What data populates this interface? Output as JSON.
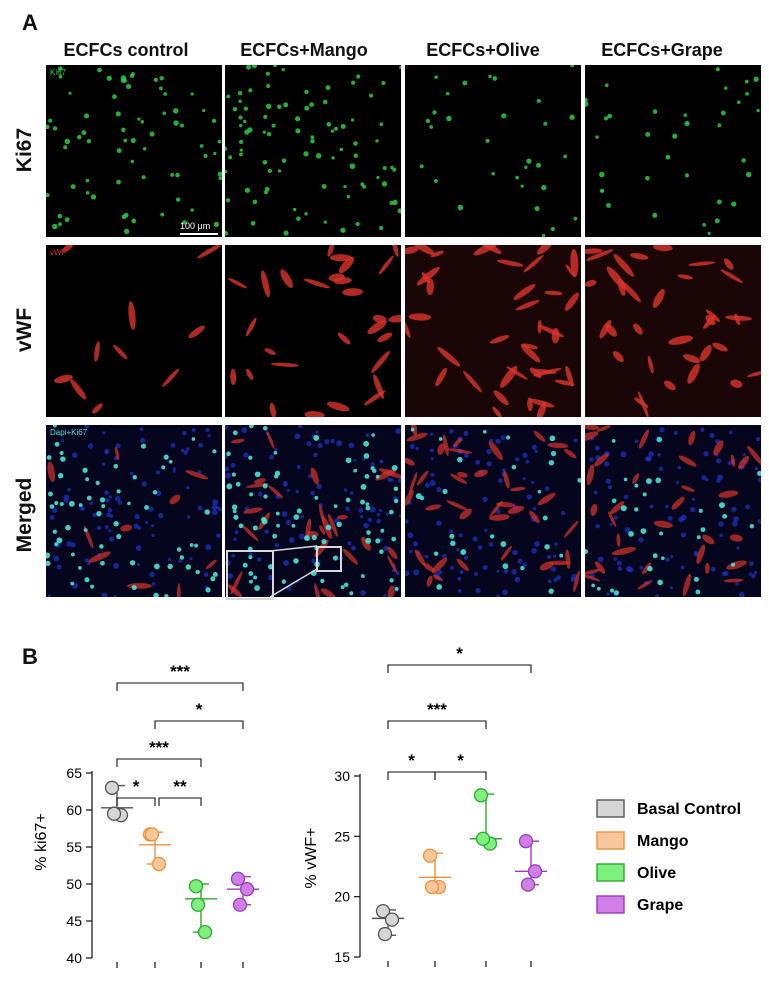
{
  "panel_a": {
    "letter": "A",
    "columns": [
      "ECFCs control",
      "ECFCs+Mango",
      "ECFCs+Olive",
      "ECFCs+Grape"
    ],
    "rows": [
      "Ki67",
      "vWF",
      "Merged"
    ],
    "channel_tags": {
      "ki67": "Ki67",
      "vwf": "vWF",
      "merged": "Dapi+Ki67"
    },
    "scale_bar": "100 μm",
    "colors": {
      "ki67": "#2ecc40",
      "vwf": "#d9342b",
      "dapi": "#1f35c8",
      "merge_nuclei": "#48e3d0"
    }
  },
  "panel_b": {
    "letter": "B"
  },
  "legend": {
    "items": [
      {
        "label": "Basal Control",
        "fill": "#d6d6d6",
        "edge": "#555555"
      },
      {
        "label": "Mango",
        "fill": "#f6c79b",
        "edge": "#f0913c"
      },
      {
        "label": "Olive",
        "fill": "#7ef07e",
        "edge": "#2fa82f"
      },
      {
        "label": "Grape",
        "fill": "#cf7fe6",
        "edge": "#9b3cbf"
      }
    ]
  },
  "chart_data": [
    {
      "type": "scatter",
      "ylabel": "% ki67+",
      "ylim": [
        40,
        65
      ],
      "yticks": [
        40,
        45,
        50,
        55,
        60,
        65
      ],
      "categories": [
        "Basal Control",
        "Mango",
        "Olive",
        "Grape"
      ],
      "series": [
        {
          "name": "Basal Control",
          "values": [
            63.0,
            59.3,
            59.5
          ],
          "center": 60.3,
          "range": [
            59.0,
            63.3
          ]
        },
        {
          "name": "Mango",
          "values": [
            56.7,
            52.7,
            56.7
          ],
          "center": 55.3,
          "range": [
            52.7,
            57.0
          ]
        },
        {
          "name": "Olive",
          "values": [
            49.7,
            43.5,
            47.2
          ],
          "center": 48.0,
          "range": [
            43.5,
            50.0
          ]
        },
        {
          "name": "Grape",
          "values": [
            50.7,
            49.3,
            47.2
          ],
          "center": 49.3,
          "range": [
            47.2,
            51.0
          ]
        }
      ],
      "significance": [
        {
          "from": 0,
          "to": 3,
          "label": "***"
        },
        {
          "from": 1,
          "to": 3,
          "label": "*"
        },
        {
          "from": 0,
          "to": 2,
          "label": "***"
        },
        {
          "from": 0,
          "to": 1,
          "label": "*"
        },
        {
          "from": 1,
          "to": 2,
          "label": "**"
        }
      ]
    },
    {
      "type": "scatter",
      "ylabel": "% vWF+",
      "ylim": [
        15,
        30
      ],
      "yticks": [
        15,
        20,
        25,
        30
      ],
      "categories": [
        "Basal Control",
        "Mango",
        "Olive",
        "Grape"
      ],
      "series": [
        {
          "name": "Basal Control",
          "values": [
            18.8,
            18.1,
            16.9
          ],
          "center": 18.2,
          "range": [
            16.8,
            18.9
          ]
        },
        {
          "name": "Mango",
          "values": [
            23.4,
            20.8,
            20.8
          ],
          "center": 21.6,
          "range": [
            20.6,
            23.6
          ]
        },
        {
          "name": "Olive",
          "values": [
            28.4,
            24.4,
            24.8
          ],
          "center": 24.8,
          "range": [
            24.4,
            28.5
          ]
        },
        {
          "name": "Grape",
          "values": [
            24.6,
            22.1,
            21.0
          ],
          "center": 22.1,
          "range": [
            21.0,
            24.6
          ]
        }
      ],
      "significance": [
        {
          "from": 0,
          "to": 3,
          "label": "*"
        },
        {
          "from": 0,
          "to": 2,
          "label": "***"
        },
        {
          "from": 0,
          "to": 1,
          "label": "*"
        },
        {
          "from": 1,
          "to": 2,
          "label": "*"
        }
      ]
    }
  ]
}
